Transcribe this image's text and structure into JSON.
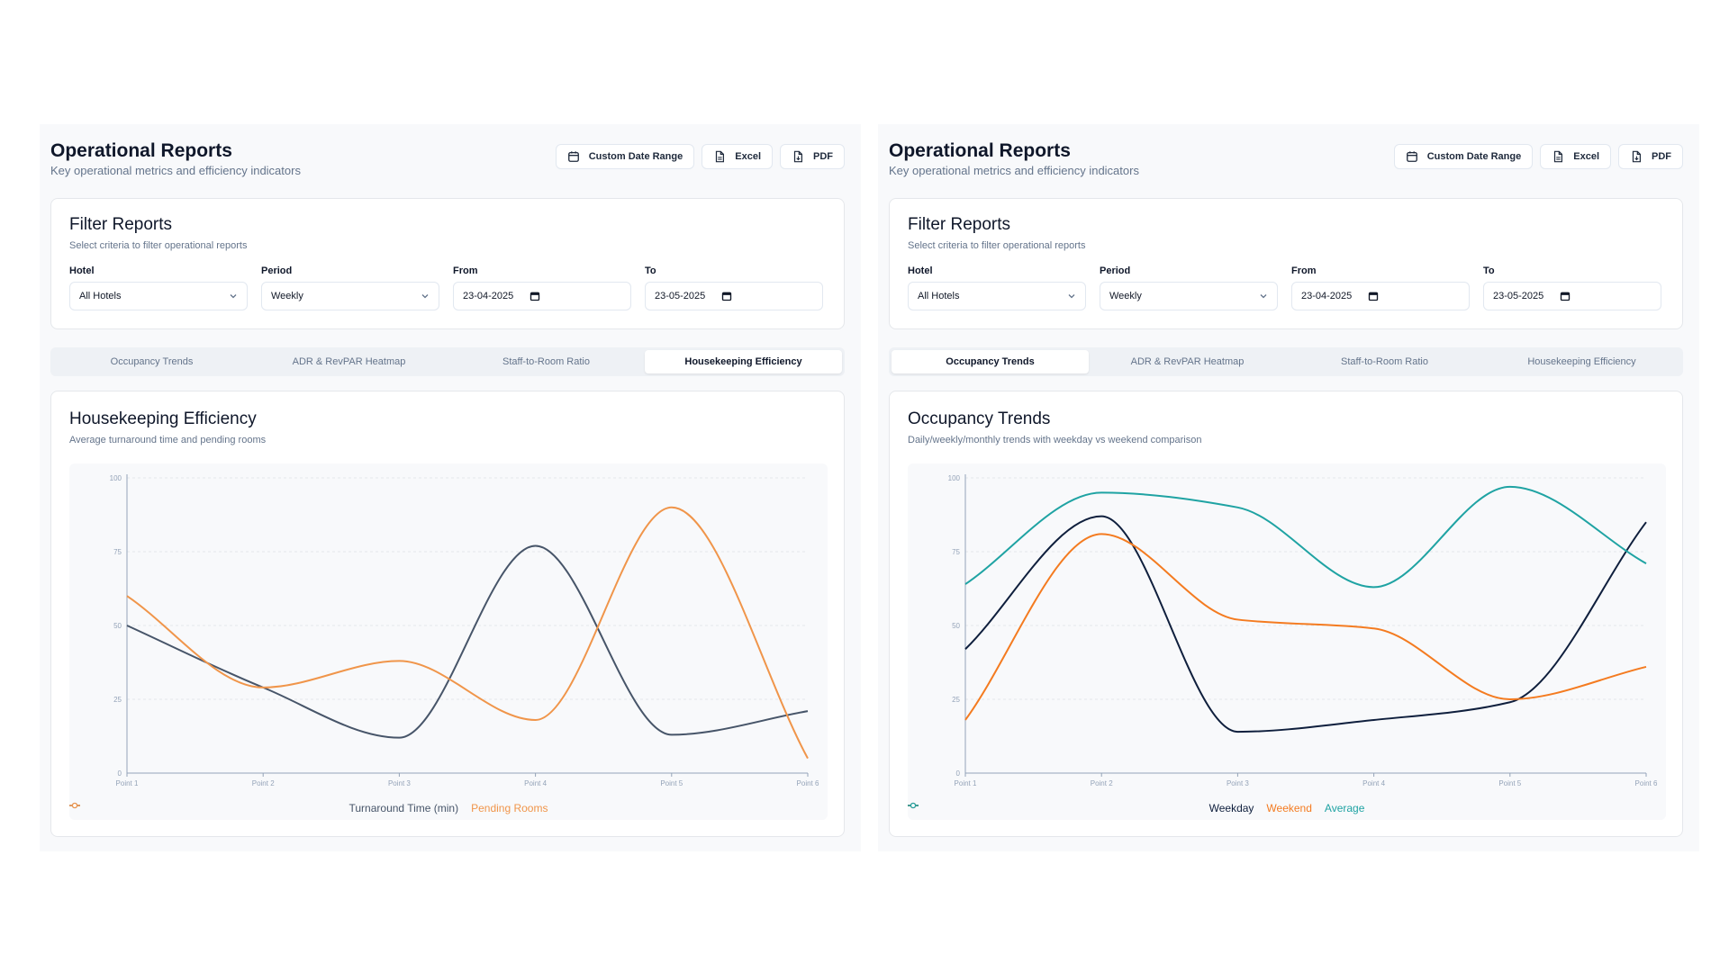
{
  "panels": [
    {
      "header": {
        "title": "Operational Reports",
        "subtitle": "Key operational metrics and efficiency indicators"
      },
      "actions": {
        "custom_range": "Custom Date Range",
        "excel": "Excel",
        "pdf": "PDF"
      },
      "filters": {
        "title": "Filter Reports",
        "subtitle": "Select criteria to filter operational reports",
        "hotel": {
          "label": "Hotel",
          "value": "All Hotels"
        },
        "period": {
          "label": "Period",
          "value": "Weekly"
        },
        "from": {
          "label": "From",
          "value": "23-04-2025"
        },
        "to": {
          "label": "To",
          "value": "23-05-2025"
        }
      },
      "tabs": [
        {
          "label": "Occupancy Trends",
          "active": false
        },
        {
          "label": "ADR & RevPAR Heatmap",
          "active": false
        },
        {
          "label": "Staff-to-Room Ratio",
          "active": false
        },
        {
          "label": "Housekeeping Efficiency",
          "active": true
        }
      ],
      "chart": {
        "title": "Housekeeping Efficiency",
        "subtitle": "Average turnaround time and pending rooms"
      }
    },
    {
      "header": {
        "title": "Operational Reports",
        "subtitle": "Key operational metrics and efficiency indicators"
      },
      "actions": {
        "custom_range": "Custom Date Range",
        "excel": "Excel",
        "pdf": "PDF"
      },
      "filters": {
        "title": "Filter Reports",
        "subtitle": "Select criteria to filter operational reports",
        "hotel": {
          "label": "Hotel",
          "value": "All Hotels"
        },
        "period": {
          "label": "Period",
          "value": "Weekly"
        },
        "from": {
          "label": "From",
          "value": "23-04-2025"
        },
        "to": {
          "label": "To",
          "value": "23-05-2025"
        }
      },
      "tabs": [
        {
          "label": "Occupancy Trends",
          "active": true
        },
        {
          "label": "ADR & RevPAR Heatmap",
          "active": false
        },
        {
          "label": "Staff-to-Room Ratio",
          "active": false
        },
        {
          "label": "Housekeeping Efficiency",
          "active": false
        }
      ],
      "chart": {
        "title": "Occupancy Trends",
        "subtitle": "Daily/weekly/monthly trends with weekday vs weekend comparison"
      }
    }
  ],
  "chart_data": [
    {
      "type": "line",
      "title": "Housekeeping Efficiency",
      "subtitle": "Average turnaround time and pending rooms",
      "categories": [
        "Point 1",
        "Point 2",
        "Point 3",
        "Point 4",
        "Point 5",
        "Point 6"
      ],
      "ylim": [
        0,
        100
      ],
      "yticks": [
        0,
        25,
        50,
        75,
        100
      ],
      "legend": "bottom-center",
      "series": [
        {
          "name": "Turnaround Time (min)",
          "color": "#475569",
          "values": [
            50,
            29,
            12,
            77,
            13,
            21
          ]
        },
        {
          "name": "Pending Rooms",
          "color": "#f0954a",
          "values": [
            60,
            29,
            38,
            18,
            90,
            5
          ]
        }
      ]
    },
    {
      "type": "line",
      "title": "Occupancy Trends",
      "subtitle": "Daily/weekly/monthly trends with weekday vs weekend comparison",
      "categories": [
        "Point 1",
        "Point 2",
        "Point 3",
        "Point 4",
        "Point 5",
        "Point 6"
      ],
      "ylim": [
        0,
        100
      ],
      "yticks": [
        0,
        25,
        50,
        75,
        100
      ],
      "legend": "bottom-center",
      "series": [
        {
          "name": "Weekday",
          "color": "#0f1f3d",
          "values": [
            42,
            87,
            14,
            18,
            24,
            85
          ]
        },
        {
          "name": "Weekend",
          "color": "#f47b20",
          "values": [
            18,
            81,
            52,
            49,
            25,
            36
          ]
        },
        {
          "name": "Average",
          "color": "#1fa3a3",
          "values": [
            64,
            95,
            90,
            63,
            97,
            71
          ]
        }
      ]
    }
  ],
  "icons": {
    "calendar": "calendar-icon",
    "file": "file-icon",
    "chevron": "chevron-down-icon"
  }
}
